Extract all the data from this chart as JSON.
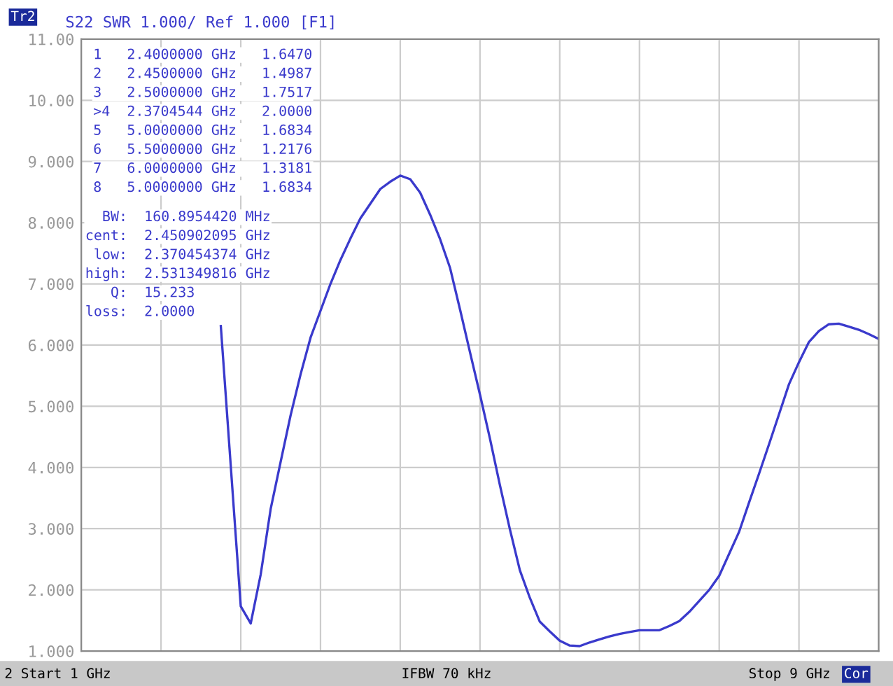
{
  "chart_data": {
    "type": "line",
    "title": "S22 SWR 1.000/ Ref 1.000 [F1]",
    "annotations": [
      "Tr2",
      "1   2.4000000 GHz   1.6470",
      "2   2.4500000 GHz   1.4987",
      "3   2.5000000 GHz   1.7517",
      ">4  2.3704544 GHz   2.0000",
      "5   5.0000000 GHz   1.6834",
      "6   5.5000000 GHz   1.2176",
      "7   6.0000000 GHz   1.3181",
      "8   5.0000000 GHz   1.6834",
      "  BW:  160.8954420 MHz",
      "cent:  2.450902095 GHz",
      " low:  2.370454374 GHz",
      "high:  2.531349816 GHz",
      "   Q:  15.233",
      "loss:  2.0000",
      "2 Start 1 GHz",
      "IFBW 70 kHz",
      "Stop 9 GHz",
      "Cor"
    ],
    "categories": [
      null,
      null,
      null,
      null,
      null,
      null,
      null,
      null,
      null,
      null,
      null,
      null,
      null,
      null,
      null,
      null,
      null,
      null,
      null,
      null,
      null,
      null,
      null,
      null,
      null,
      null,
      null,
      null,
      null,
      null,
      null,
      null,
      null,
      null,
      null,
      null,
      null,
      null,
      null,
      null,
      null,
      null,
      null,
      null,
      null,
      null,
      null,
      null,
      null,
      null,
      null,
      null,
      null,
      null,
      null,
      null,
      null,
      null,
      null,
      null,
      null,
      null,
      null,
      null,
      null,
      null,
      null,
      null,
      null,
      null,
      null,
      null,
      null,
      null,
      null,
      null,
      null,
      null,
      null,
      null,
      null
    ],
    "series": [
      {
        "color": "#3a3acc",
        "values": [
          null,
          null,
          null,
          null,
          null,
          null,
          null,
          null,
          null,
          null,
          null,
          null,
          null,
          null,
          6.31,
          4.02,
          1.73,
          1.45,
          2.25,
          3.32,
          4.09,
          4.85,
          5.52,
          6.12,
          6.56,
          7.0,
          7.39,
          7.74,
          8.07,
          8.31,
          8.55,
          8.67,
          8.77,
          8.71,
          8.49,
          8.13,
          7.73,
          7.26,
          6.58,
          5.88,
          5.19,
          4.47,
          3.71,
          2.99,
          2.32,
          1.87,
          1.48,
          1.32,
          1.17,
          1.09,
          1.08,
          1.14,
          1.19,
          1.24,
          1.28,
          1.31,
          1.34,
          1.34,
          1.34,
          1.41,
          1.49,
          1.64,
          1.82,
          2.0,
          2.23,
          2.59,
          2.95,
          3.43,
          3.9,
          4.38,
          4.87,
          5.36,
          5.72,
          6.05,
          6.23,
          6.34,
          6.35,
          6.3,
          6.25,
          6.18,
          6.1
        ]
      }
    ],
    "ylim": [
      1,
      11
    ],
    "yticks": [
      {
        "value": 1,
        "label": "1.000"
      },
      {
        "value": 2,
        "label": "2.000"
      },
      {
        "value": 3,
        "label": "3.000"
      },
      {
        "value": 4,
        "label": "4.000"
      },
      {
        "value": 5,
        "label": "5.000"
      },
      {
        "value": 6,
        "label": "6.000"
      },
      {
        "value": 7,
        "label": "7.000"
      },
      {
        "value": 8,
        "label": "8.000"
      },
      {
        "value": 9,
        "label": "9.000"
      },
      {
        "value": 10,
        "label": "10.00"
      },
      {
        "value": 11,
        "label": "11.00"
      }
    ],
    "tick_labels": "y",
    "grid": true,
    "legend": false,
    "marker": "none",
    "line_style": "solid"
  }
}
